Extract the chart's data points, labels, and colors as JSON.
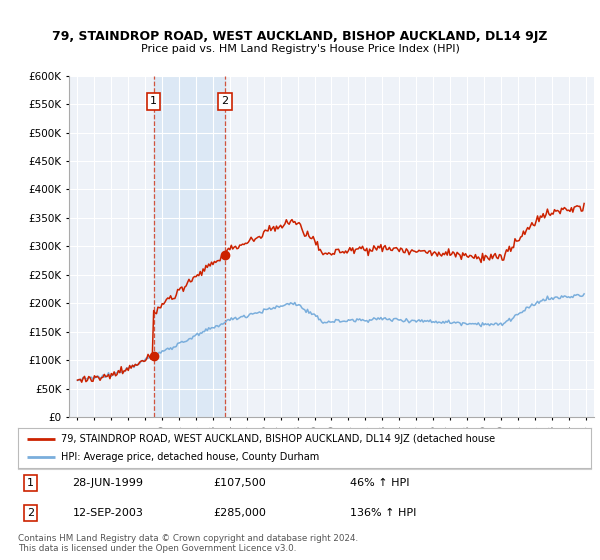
{
  "title1": "79, STAINDROP ROAD, WEST AUCKLAND, BISHOP AUCKLAND, DL14 9JZ",
  "title2": "Price paid vs. HM Land Registry's House Price Index (HPI)",
  "legend_line1": "79, STAINDROP ROAD, WEST AUCKLAND, BISHOP AUCKLAND, DL14 9JZ (detached house",
  "legend_line2": "HPI: Average price, detached house, County Durham",
  "footer": "Contains HM Land Registry data © Crown copyright and database right 2024.\nThis data is licensed under the Open Government Licence v3.0.",
  "sale1_date": "28-JUN-1999",
  "sale1_price": 107500,
  "sale1_hpi": "46% ↑ HPI",
  "sale2_date": "12-SEP-2003",
  "sale2_price": 285000,
  "sale2_hpi": "136% ↑ HPI",
  "sale1_x": 1999.49,
  "sale2_x": 2003.71,
  "ylim": [
    0,
    600000
  ],
  "yticks": [
    0,
    50000,
    100000,
    150000,
    200000,
    250000,
    300000,
    350000,
    400000,
    450000,
    500000,
    550000,
    600000
  ],
  "xlim_left": 1994.5,
  "xlim_right": 2025.5,
  "bg_color": "#eef2f8",
  "hpi_color": "#7aaedc",
  "price_color": "#cc2200",
  "shaded_region_color": "#dce8f5"
}
